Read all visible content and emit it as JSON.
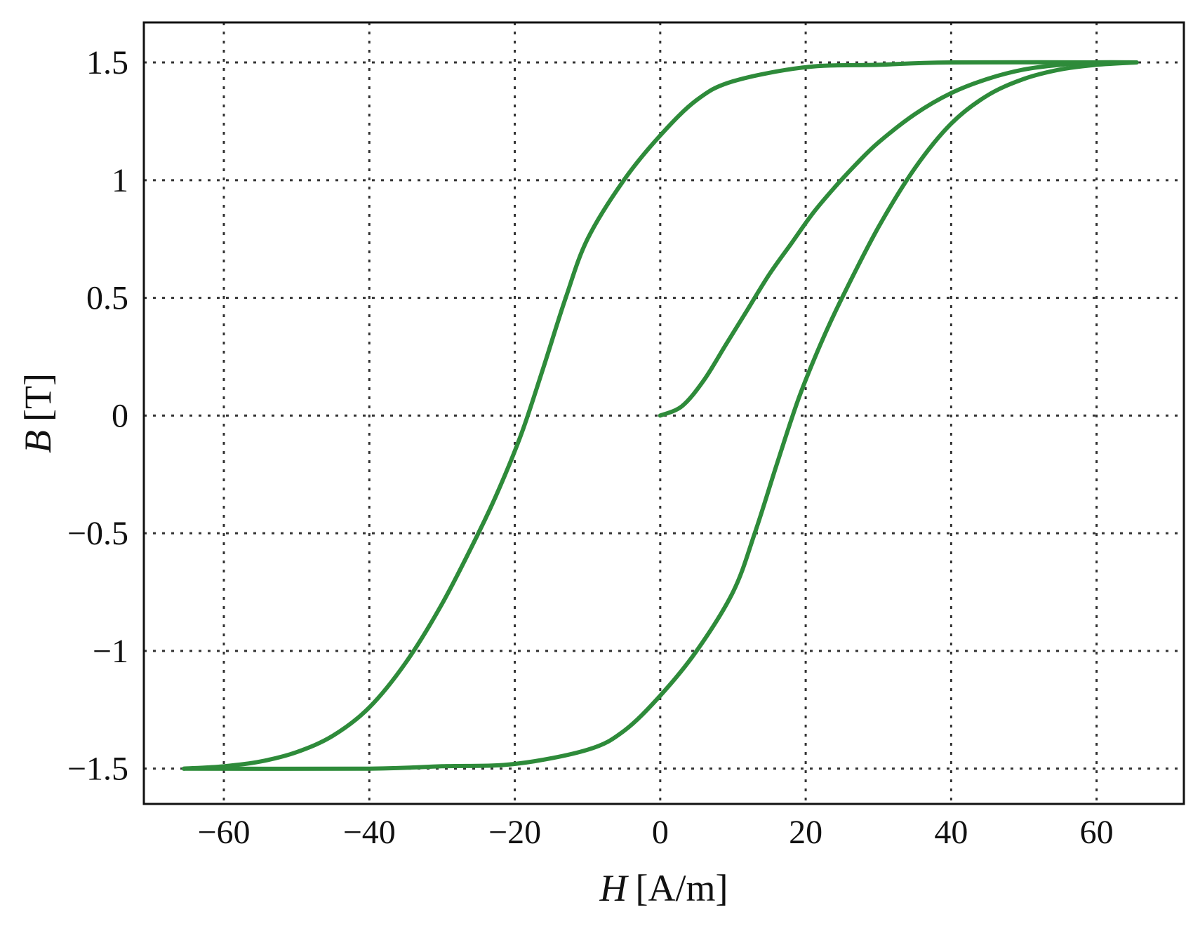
{
  "chart_data": {
    "type": "line",
    "title": "",
    "xlabel_var": "H",
    "xlabel_unit": "[A/m]",
    "ylabel_var": "B",
    "ylabel_unit": "[T]",
    "xlim": [
      -71,
      72
    ],
    "ylim": [
      -1.65,
      1.67
    ],
    "xticks": [
      -60,
      -40,
      -20,
      0,
      20,
      40,
      60
    ],
    "xtick_labels": [
      "−60",
      "−40",
      "−20",
      "0",
      "20",
      "40",
      "60"
    ],
    "yticks": [
      1.5,
      1,
      0.5,
      0,
      -0.5,
      -1,
      -1.5
    ],
    "ytick_labels": [
      "1.5",
      "1",
      "0.5",
      "0",
      "−0.5",
      "−1",
      "−1.5"
    ],
    "grid": true,
    "line_color": "#2e8b3a",
    "series": [
      {
        "segment": "initial-magnetization",
        "x": [
          0,
          3,
          6,
          9,
          12,
          15,
          18,
          21,
          24,
          27,
          30,
          35,
          40,
          45,
          50,
          55,
          60,
          65.5
        ],
        "y": [
          0,
          0.04,
          0.15,
          0.3,
          0.45,
          0.6,
          0.73,
          0.86,
          0.97,
          1.07,
          1.16,
          1.28,
          1.37,
          1.43,
          1.47,
          1.49,
          1.5,
          1.5
        ]
      },
      {
        "segment": "descending-branch",
        "x": [
          65.5,
          40,
          30,
          20,
          10,
          5,
          0,
          -5,
          -10,
          -13,
          -16,
          -19,
          -22,
          -25,
          -30,
          -35,
          -40,
          -45,
          -50,
          -55,
          -60,
          -65.5
        ],
        "y": [
          1.5,
          1.5,
          1.49,
          1.48,
          1.42,
          1.34,
          1.19,
          1.0,
          0.75,
          0.5,
          0.21,
          -0.07,
          -0.3,
          -0.5,
          -0.8,
          -1.05,
          -1.24,
          -1.36,
          -1.43,
          -1.47,
          -1.49,
          -1.5
        ]
      },
      {
        "segment": "ascending-branch",
        "x": [
          -65.5,
          -40,
          -30,
          -20,
          -10,
          -5,
          0,
          5,
          10,
          13,
          16,
          19,
          22,
          25,
          30,
          35,
          40,
          45,
          50,
          55,
          60,
          65.5
        ],
        "y": [
          -1.5,
          -1.5,
          -1.49,
          -1.48,
          -1.42,
          -1.34,
          -1.19,
          -1.0,
          -0.75,
          -0.5,
          -0.21,
          0.07,
          0.3,
          0.5,
          0.8,
          1.05,
          1.24,
          1.36,
          1.43,
          1.47,
          1.49,
          1.5
        ]
      }
    ]
  }
}
